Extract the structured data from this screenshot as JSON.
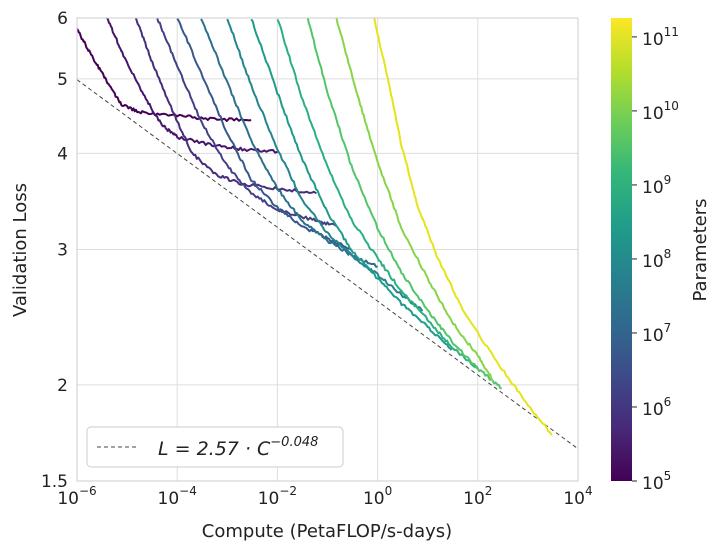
{
  "chart_data": {
    "type": "line",
    "title": "",
    "xlabel": "Compute (PetaFLOP/s-days)",
    "ylabel": "Validation Loss",
    "xscale": "log",
    "yscale": "log",
    "xlim": [
      1e-06,
      10000.0
    ],
    "ylim": [
      1.5,
      6
    ],
    "grid": true,
    "x_ticks": [
      {
        "base": "10",
        "exp": "−6",
        "value": 1e-06
      },
      {
        "base": "10",
        "exp": "−4",
        "value": 0.0001
      },
      {
        "base": "10",
        "exp": "−2",
        "value": 0.01
      },
      {
        "base": "10",
        "exp": "0",
        "value": 1
      },
      {
        "base": "10",
        "exp": "2",
        "value": 100
      },
      {
        "base": "10",
        "exp": "4",
        "value": 10000
      }
    ],
    "y_ticks": [
      {
        "label": "1.5",
        "value": 1.5
      },
      {
        "label": "2",
        "value": 2
      },
      {
        "label": "3",
        "value": 3
      },
      {
        "label": "4",
        "value": 4
      },
      {
        "label": "5",
        "value": 5
      },
      {
        "label": "6",
        "value": 6
      }
    ],
    "fit_line": {
      "legend": "L = 2.57 · C",
      "legend_exp": "−0.048",
      "coefficient": 2.57,
      "exponent": -0.048,
      "style": "dashed",
      "color": "#444444"
    },
    "legend_position": "lower-left",
    "colorbar": {
      "label": "Parameters",
      "scale": "log",
      "colormap": "viridis",
      "range": [
        100000.0,
        180000000000.0
      ],
      "ticks": [
        {
          "base": "10",
          "exp": "5",
          "value": 100000.0
        },
        {
          "base": "10",
          "exp": "6",
          "value": 1000000.0
        },
        {
          "base": "10",
          "exp": "7",
          "value": 10000000.0
        },
        {
          "base": "10",
          "exp": "8",
          "value": 100000000.0
        },
        {
          "base": "10",
          "exp": "9",
          "value": 1000000000.0
        },
        {
          "base": "10",
          "exp": "10",
          "value": 10000000000.0
        },
        {
          "base": "10",
          "exp": "11",
          "value": 100000000000.0
        }
      ],
      "colors": [
        "#440154",
        "#482878",
        "#3e4989",
        "#31688e",
        "#26828e",
        "#1f9e89",
        "#35b779",
        "#6ece58",
        "#b5de2b",
        "#fde725"
      ]
    },
    "series": [
      {
        "params": 300000.0,
        "color": "#440154",
        "points": [
          [
            1e-06,
            5.8
          ],
          [
            2e-06,
            5.35
          ],
          [
            4e-06,
            4.95
          ],
          [
            8e-06,
            4.62
          ],
          [
            2e-05,
            4.52
          ],
          [
            0.0001,
            4.48
          ],
          [
            0.0005,
            4.43
          ],
          [
            0.003,
            4.42
          ]
        ]
      },
      {
        "params": 600000.0,
        "color": "#46166b",
        "points": [
          [
            4e-06,
            6.0
          ],
          [
            8e-06,
            5.4
          ],
          [
            2e-05,
            4.8
          ],
          [
            5e-05,
            4.35
          ],
          [
            0.0001,
            4.2
          ],
          [
            0.0005,
            4.1
          ],
          [
            0.002,
            4.05
          ],
          [
            0.01,
            4.02
          ]
        ]
      },
      {
        "params": 1500000.0,
        "color": "#472d7b",
        "points": [
          [
            1.5e-05,
            6.0
          ],
          [
            3e-05,
            5.3
          ],
          [
            8e-05,
            4.55
          ],
          [
            0.0002,
            4.0
          ],
          [
            0.0006,
            3.75
          ],
          [
            0.002,
            3.65
          ],
          [
            0.01,
            3.6
          ],
          [
            0.06,
            3.55
          ]
        ]
      },
      {
        "params": 3000000.0,
        "color": "#424086",
        "points": [
          [
            4e-05,
            6.0
          ],
          [
            0.0001,
            5.2
          ],
          [
            0.0003,
            4.4
          ],
          [
            0.001,
            3.85
          ],
          [
            0.003,
            3.55
          ],
          [
            0.01,
            3.38
          ],
          [
            0.05,
            3.28
          ],
          [
            0.15,
            3.22
          ]
        ]
      },
      {
        "params": 6000000.0,
        "color": "#38588c",
        "points": [
          [
            0.0001,
            6.0
          ],
          [
            0.0003,
            5.1
          ],
          [
            0.001,
            4.25
          ],
          [
            0.003,
            3.7
          ],
          [
            0.01,
            3.4
          ],
          [
            0.03,
            3.22
          ],
          [
            0.1,
            3.1
          ],
          [
            0.3,
            3.0
          ]
        ]
      },
      {
        "params": 15000000.0,
        "color": "#2d708e",
        "points": [
          [
            0.0003,
            6.0
          ],
          [
            0.001,
            4.95
          ],
          [
            0.003,
            4.15
          ],
          [
            0.01,
            3.6
          ],
          [
            0.03,
            3.28
          ],
          [
            0.1,
            3.08
          ],
          [
            0.3,
            2.95
          ],
          [
            1,
            2.85
          ]
        ]
      },
      {
        "params": 30000000.0,
        "color": "#25858e",
        "points": [
          [
            0.001,
            6.0
          ],
          [
            0.003,
            4.9
          ],
          [
            0.01,
            4.05
          ],
          [
            0.03,
            3.5
          ],
          [
            0.1,
            3.15
          ],
          [
            0.3,
            2.95
          ],
          [
            1,
            2.78
          ],
          [
            3,
            2.62
          ],
          [
            8,
            2.5
          ]
        ]
      },
      {
        "params": 100000000.0,
        "color": "#1e9b8a",
        "points": [
          [
            0.003,
            6.0
          ],
          [
            0.01,
            4.8
          ],
          [
            0.03,
            3.95
          ],
          [
            0.1,
            3.35
          ],
          [
            0.3,
            3.0
          ],
          [
            1,
            2.75
          ],
          [
            3,
            2.55
          ],
          [
            10,
            2.38
          ],
          [
            30,
            2.22
          ]
        ]
      },
      {
        "params": 300000000.0,
        "color": "#2ab07f",
        "points": [
          [
            0.01,
            6.0
          ],
          [
            0.03,
            4.75
          ],
          [
            0.1,
            3.85
          ],
          [
            0.3,
            3.28
          ],
          [
            1,
            2.92
          ],
          [
            3,
            2.65
          ],
          [
            10,
            2.43
          ],
          [
            30,
            2.24
          ],
          [
            100,
            2.1
          ]
        ]
      },
      {
        "params": 1000000000.0,
        "color": "#52c569",
        "points": [
          [
            0.04,
            6.0
          ],
          [
            0.1,
            4.8
          ],
          [
            0.3,
            3.85
          ],
          [
            1,
            3.2
          ],
          [
            3,
            2.8
          ],
          [
            10,
            2.5
          ],
          [
            30,
            2.28
          ],
          [
            100,
            2.1
          ],
          [
            300,
            1.98
          ]
        ]
      },
      {
        "params": 3000000000.0,
        "color": "#86d549",
        "points": [
          [
            0.15,
            6.0
          ],
          [
            0.4,
            4.75
          ],
          [
            1,
            3.9
          ],
          [
            3,
            3.2
          ],
          [
            10,
            2.75
          ],
          [
            30,
            2.42
          ],
          [
            100,
            2.18
          ],
          [
            200,
            2.03
          ]
        ]
      },
      {
        "params": 180000000000.0,
        "color": "#e4e419",
        "points": [
          [
            0.85,
            6.0
          ],
          [
            1.6,
            5.0
          ],
          [
            3,
            4.1
          ],
          [
            6,
            3.45
          ],
          [
            15,
            2.95
          ],
          [
            50,
            2.5
          ],
          [
            200,
            2.18
          ],
          [
            800,
            1.92
          ],
          [
            3000,
            1.72
          ]
        ]
      }
    ]
  }
}
